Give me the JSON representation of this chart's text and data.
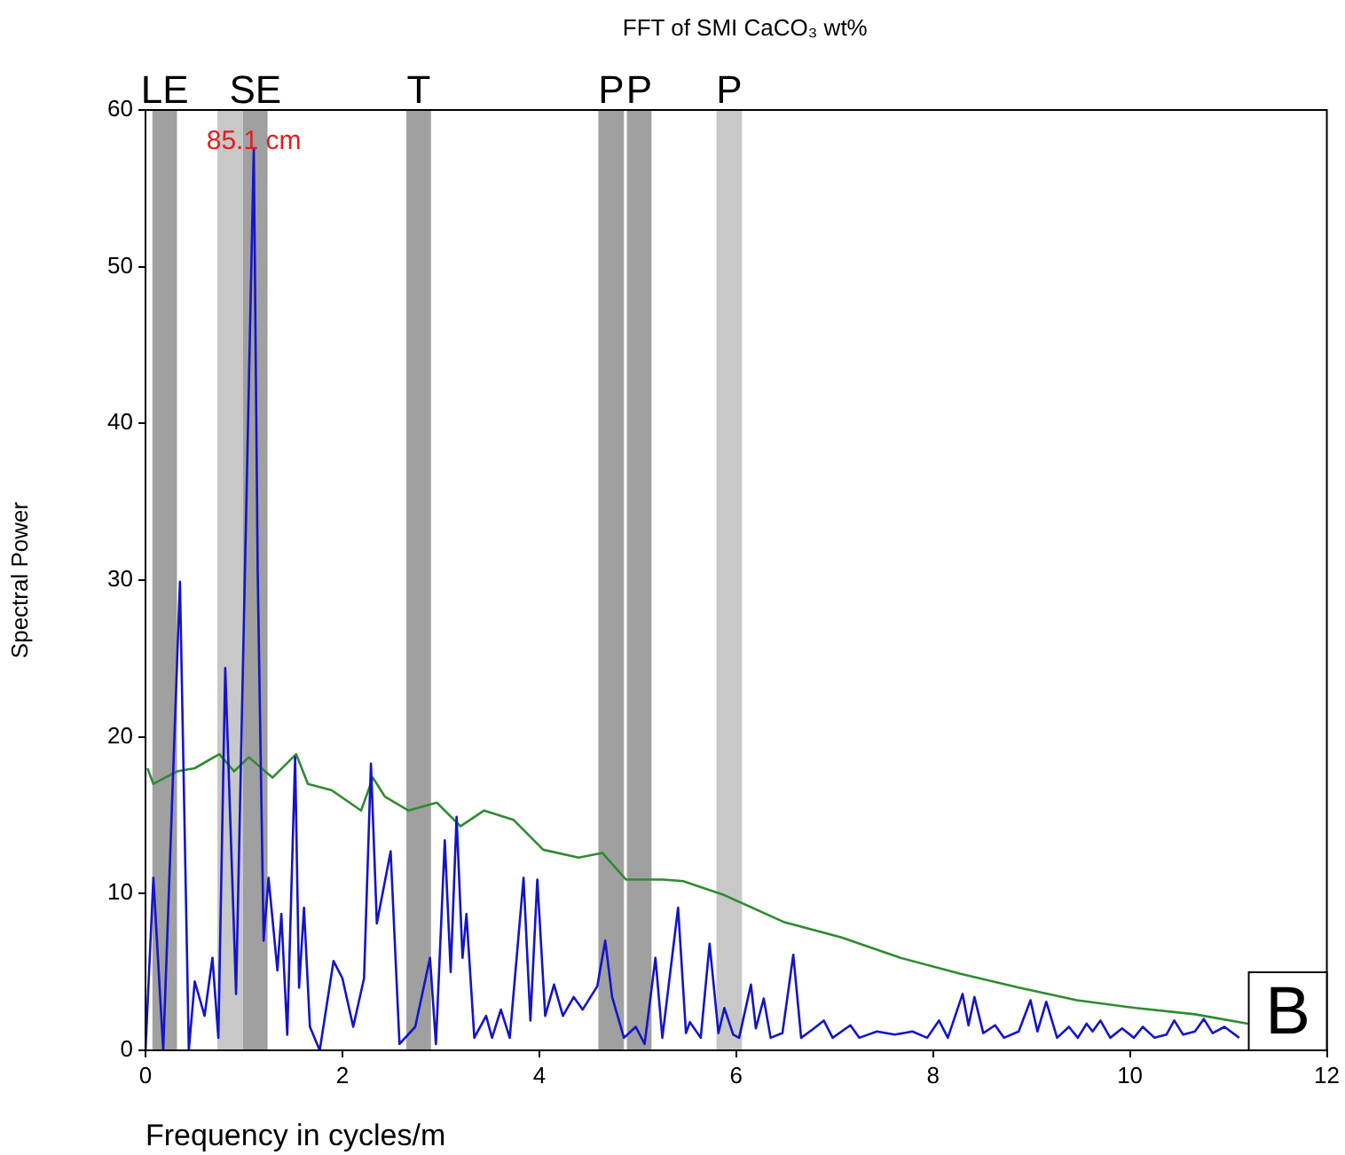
{
  "chart_data": {
    "type": "line",
    "title": "FFT of SMI CaCO₃ wt%",
    "xlabel": "Frequency in cycles/m",
    "ylabel": "Spectral Power",
    "xlim": [
      0,
      12
    ],
    "xticks": [
      0,
      2,
      4,
      6,
      8,
      10,
      12
    ],
    "ylim": [
      0,
      60
    ],
    "yticks": [
      0,
      10,
      20,
      30,
      40,
      50,
      60
    ],
    "grid": false,
    "legend": false,
    "marker": "none",
    "line_style": "solid",
    "bands": [
      {
        "axis": "x",
        "from": 0.07,
        "to": 0.32,
        "label": "LE",
        "color": "#a0a0a0"
      },
      {
        "axis": "x",
        "from": 0.73,
        "to": 0.99,
        "label": null,
        "color": "#c8c8c8"
      },
      {
        "axis": "x",
        "from": 0.99,
        "to": 1.24,
        "label": "SE",
        "color": "#a0a0a0"
      },
      {
        "axis": "x",
        "from": 2.65,
        "to": 2.9,
        "label": "T",
        "color": "#a0a0a0"
      },
      {
        "axis": "x",
        "from": 4.6,
        "to": 4.86,
        "label": "P",
        "color": "#a0a0a0"
      },
      {
        "axis": "x",
        "from": 4.89,
        "to": 5.14,
        "label": "P",
        "color": "#a0a0a0"
      },
      {
        "axis": "x",
        "from": 5.8,
        "to": 6.06,
        "label": "P",
        "color": "#c8c8c8"
      }
    ],
    "annotations": [
      {
        "text": "85.1 cm",
        "x": 1.1,
        "y": 58
      },
      "B"
    ],
    "series": [
      {
        "color": "#1414c8",
        "x": [
          0,
          0.08,
          0.18,
          0.35,
          0.44,
          0.5,
          0.6,
          0.68,
          0.74,
          0.81,
          0.92,
          1.1,
          1.14,
          1.2,
          1.25,
          1.34,
          1.38,
          1.44,
          1.52,
          1.56,
          1.61,
          1.67,
          1.77,
          1.91,
          2.0,
          2.11,
          2.22,
          2.29,
          2.35,
          2.49,
          2.58,
          2.74,
          2.89,
          2.95,
          3.04,
          3.1,
          3.16,
          3.22,
          3.26,
          3.34,
          3.46,
          3.52,
          3.61,
          3.7,
          3.84,
          3.91,
          3.98,
          4.06,
          4.15,
          4.24,
          4.35,
          4.44,
          4.59,
          4.67,
          4.74,
          4.86,
          4.98,
          5.07,
          5.18,
          5.25,
          5.41,
          5.49,
          5.53,
          5.64,
          5.73,
          5.82,
          5.88,
          5.97,
          6.03,
          6.15,
          6.2,
          6.28,
          6.35,
          6.47,
          6.58,
          6.66,
          6.77,
          6.89,
          6.98,
          7.16,
          7.25,
          7.43,
          7.61,
          7.79,
          7.94,
          8.06,
          8.15,
          8.3,
          8.36,
          8.42,
          8.51,
          8.63,
          8.72,
          8.87,
          8.99,
          9.06,
          9.15,
          9.26,
          9.38,
          9.47,
          9.56,
          9.62,
          9.7,
          9.8,
          9.92,
          10.04,
          10.13,
          10.25,
          10.37,
          10.45,
          10.54,
          10.66,
          10.75,
          10.84,
          10.96,
          11.11
        ],
        "values": [
          0,
          11,
          0,
          29.9,
          0,
          4.4,
          2.2,
          5.9,
          0.8,
          24.4,
          3.6,
          57.5,
          30.4,
          7,
          11,
          5.1,
          8.7,
          1,
          18.7,
          4,
          9.1,
          1.5,
          0,
          5.7,
          4.6,
          1.5,
          4.6,
          18.3,
          8.1,
          12.7,
          0.4,
          1.5,
          5.9,
          0.4,
          13.4,
          5,
          14.9,
          5.9,
          8.7,
          0.8,
          2.2,
          0.8,
          2.6,
          0.8,
          11,
          1.9,
          10.9,
          2.2,
          4.2,
          2.2,
          3.4,
          2.6,
          4.1,
          7,
          3.4,
          0.8,
          1.5,
          0.4,
          5.9,
          0.8,
          9.1,
          1.1,
          1.8,
          0.8,
          6.8,
          1.1,
          2.7,
          1,
          0.8,
          4.2,
          1.4,
          3.3,
          0.8,
          1.1,
          6.1,
          0.8,
          1.3,
          1.9,
          0.8,
          1.6,
          0.8,
          1.2,
          1,
          1.2,
          0.8,
          1.9,
          0.8,
          3.6,
          1.6,
          3.4,
          1.1,
          1.6,
          0.8,
          1.2,
          3.2,
          1.2,
          3.1,
          0.8,
          1.5,
          0.8,
          1.7,
          1.2,
          1.9,
          0.8,
          1.4,
          0.8,
          1.5,
          0.8,
          1,
          1.9,
          1,
          1.2,
          2,
          1.1,
          1.5,
          0.8
        ]
      },
      {
        "color": "#2e8b2e",
        "x": [
          0.02,
          0.08,
          0.32,
          0.5,
          0.75,
          0.9,
          1.05,
          1.29,
          1.53,
          1.65,
          1.89,
          2.19,
          2.31,
          2.43,
          2.67,
          2.96,
          3.2,
          3.44,
          3.74,
          4.04,
          4.4,
          4.64,
          4.88,
          5.25,
          5.46,
          5.88,
          6.48,
          7.07,
          7.67,
          8.27,
          8.87,
          9.46,
          10.06,
          10.66,
          11.2
        ],
        "values": [
          18,
          17,
          17.8,
          18,
          18.9,
          17.8,
          18.7,
          17.4,
          18.9,
          17,
          16.6,
          15.3,
          17.4,
          16.2,
          15.3,
          15.8,
          14.3,
          15.3,
          14.7,
          12.8,
          12.3,
          12.6,
          10.9,
          10.9,
          10.8,
          9.9,
          8.2,
          7.2,
          5.9,
          4.9,
          4,
          3.2,
          2.7,
          2.3,
          1.7
        ]
      }
    ]
  }
}
